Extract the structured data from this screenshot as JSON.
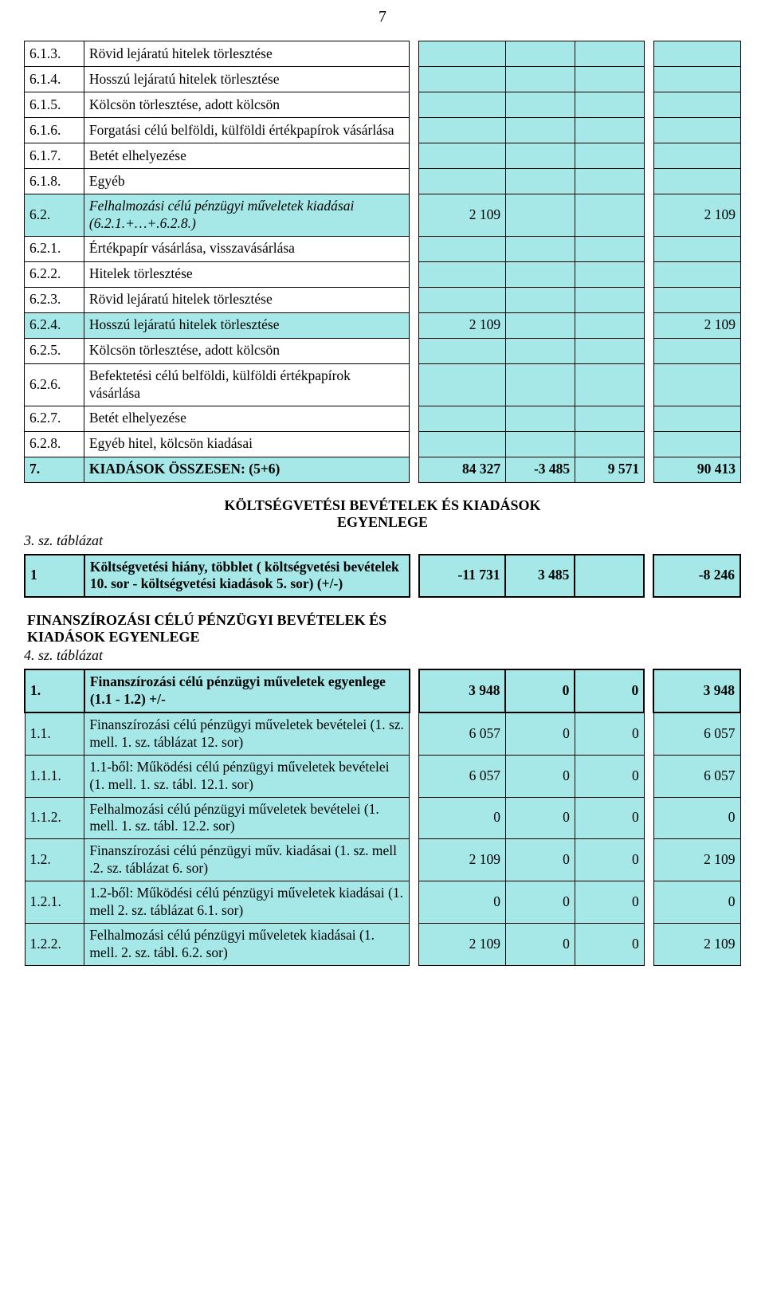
{
  "page_number": "7",
  "colors": {
    "shade": "#a6e8e8",
    "border": "#000000",
    "bg": "#ffffff"
  },
  "table1": {
    "rows": [
      {
        "idx": "6.1.3.",
        "label": "Rövid lejáratú hitelek törlesztése",
        "c1": "",
        "c2": "",
        "c3": "",
        "c4": ""
      },
      {
        "idx": "6.1.4.",
        "label": "Hosszú lejáratú hitelek törlesztése",
        "c1": "",
        "c2": "",
        "c3": "",
        "c4": ""
      },
      {
        "idx": "6.1.5.",
        "label": "Kölcsön törlesztése, adott kölcsön",
        "c1": "",
        "c2": "",
        "c3": "",
        "c4": ""
      },
      {
        "idx": "6.1.6.",
        "label": "Forgatási célú belföldi, külföldi értékpapírok vásárlása",
        "c1": "",
        "c2": "",
        "c3": "",
        "c4": ""
      },
      {
        "idx": "6.1.7.",
        "label": "Betét elhelyezése",
        "c1": "",
        "c2": "",
        "c3": "",
        "c4": ""
      },
      {
        "idx": "6.1.8.",
        "label": "Egyéb",
        "c1": "",
        "c2": "",
        "c3": "",
        "c4": ""
      },
      {
        "idx": "6.2.",
        "label": "Felhalmozási célú pénzügyi műveletek kiadásai (6.2.1.+…+.6.2.8.)",
        "c1": "2 109",
        "c2": "",
        "c3": "",
        "c4": "2 109",
        "italic": true,
        "shade": true
      },
      {
        "idx": "6.2.1.",
        "label": "Értékpapír vásárlása, visszavásárlása",
        "c1": "",
        "c2": "",
        "c3": "",
        "c4": ""
      },
      {
        "idx": "6.2.2.",
        "label": "Hitelek törlesztése",
        "c1": "",
        "c2": "",
        "c3": "",
        "c4": ""
      },
      {
        "idx": "6.2.3.",
        "label": "Rövid lejáratú hitelek törlesztése",
        "c1": "",
        "c2": "",
        "c3": "",
        "c4": ""
      },
      {
        "idx": "6.2.4.",
        "label": "Hosszú lejáratú hitelek törlesztése",
        "c1": "2 109",
        "c2": "",
        "c3": "",
        "c4": "2 109",
        "shade": true
      },
      {
        "idx": "6.2.5.",
        "label": "Kölcsön törlesztése, adott kölcsön",
        "c1": "",
        "c2": "",
        "c3": "",
        "c4": ""
      },
      {
        "idx": "6.2.6.",
        "label": "Befektetési célú belföldi, külföldi értékpapírok vásárlása",
        "c1": "",
        "c2": "",
        "c3": "",
        "c4": ""
      },
      {
        "idx": "6.2.7.",
        "label": "Betét elhelyezése",
        "c1": "",
        "c2": "",
        "c3": "",
        "c4": ""
      },
      {
        "idx": "6.2.8.",
        "label": "Egyéb hitel, kölcsön kiadásai",
        "c1": "",
        "c2": "",
        "c3": "",
        "c4": ""
      },
      {
        "idx": "7.",
        "label": "KIADÁSOK ÖSSZESEN: (5+6)",
        "c1": "84 327",
        "c2": "-3 485",
        "c3": "9 571",
        "c4": "90 413",
        "bold": true,
        "shade": true
      }
    ]
  },
  "section2_title": "KÖLTSÉGVETÉSI BEVÉTELEK ÉS KIADÁSOK\nEGYENLEGE",
  "section2_note": "3. sz. táblázat",
  "table2": {
    "rows": [
      {
        "idx": "1",
        "label": "Költségvetési hiány, többlet ( költségvetési bevételek 10. sor - költségvetési kiadások 5. sor) (+/-)",
        "c1": "-11 731",
        "c2": "3 485",
        "c3": "",
        "c4": "-8 246",
        "bold": true,
        "shade": true,
        "thick": true
      }
    ]
  },
  "section3_title": "FINANSZÍROZÁSI CÉLÚ PÉNZÜGYI BEVÉTELEK ÉS\nKIADÁSOK EGYENLEGE",
  "section3_note": "4. sz. táblázat",
  "table3": {
    "rows": [
      {
        "idx": "1.",
        "label": "Finanszírozási célú pénzügyi műveletek egyenlege (1.1 - 1.2) +/-",
        "c1": "3 948",
        "c2": "0",
        "c3": "0",
        "c4": "3 948",
        "bold": true,
        "shade": true,
        "thick": true
      },
      {
        "idx": "1.1.",
        "label": "Finanszírozási célú pénzügyi műveletek bevételei (1. sz. mell. 1. sz. táblázat 12. sor)",
        "c1": "6 057",
        "c2": "0",
        "c3": "0",
        "c4": "6 057",
        "shade": true
      },
      {
        "idx": "1.1.1.",
        "label": "1.1-ből: Működési célú pénzügyi műveletek bevételei (1. mell. 1. sz. tábl. 12.1. sor)",
        "c1": "6 057",
        "c2": "0",
        "c3": "0",
        "c4": "6 057",
        "shade": true
      },
      {
        "idx": "1.1.2.",
        "label": "Felhalmozási célú pénzügyi műveletek bevételei (1. mell. 1. sz. tábl. 12.2. sor)",
        "c1": "0",
        "c2": "0",
        "c3": "0",
        "c4": "0",
        "shade": true
      },
      {
        "idx": "1.2.",
        "label": "Finanszírozási célú pénzügyi műv. kiadásai (1. sz. mell .2. sz. táblázat 6. sor)",
        "c1": "2 109",
        "c2": "0",
        "c3": "0",
        "c4": "2 109",
        "shade": true
      },
      {
        "idx": "1.2.1.",
        "label": "1.2-ből: Működési célú pénzügyi műveletek kiadásai (1. mell 2. sz. táblázat 6.1. sor)",
        "c1": "0",
        "c2": "0",
        "c3": "0",
        "c4": "0",
        "shade": true
      },
      {
        "idx": "1.2.2.",
        "label": "Felhalmozási célú pénzügyi műveletek kiadásai (1. mell. 2. sz. tábl. 6.2. sor)",
        "c1": "2 109",
        "c2": "0",
        "c3": "0",
        "c4": "2 109",
        "shade": true
      }
    ]
  }
}
